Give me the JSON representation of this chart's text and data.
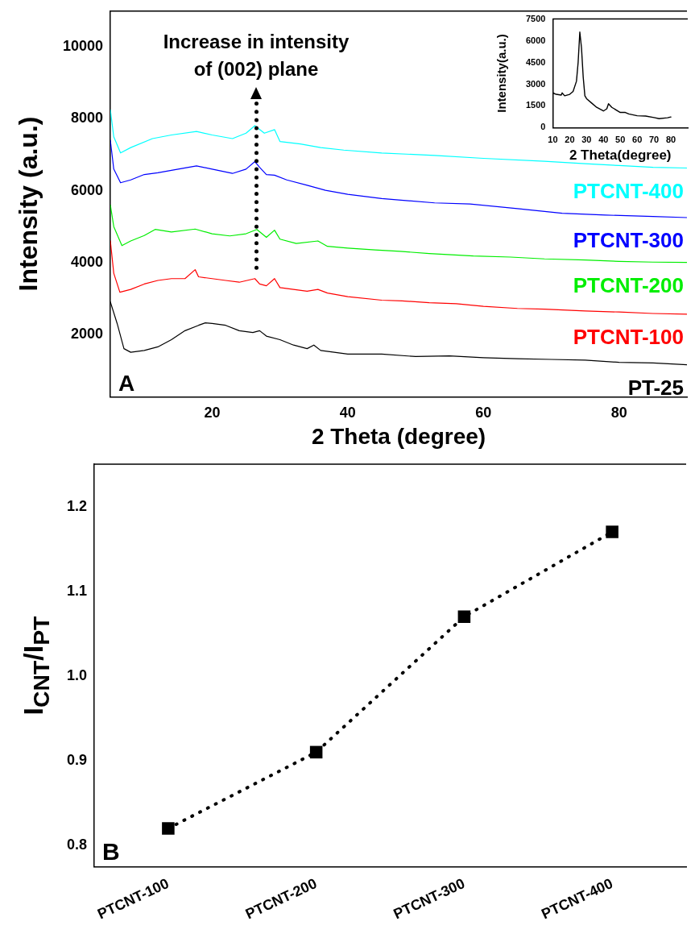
{
  "chart_data": [
    {
      "type": "line",
      "xlabel": "2 Theta (degree)",
      "ylabel": "Intensity (a.u.)",
      "xlim": [
        5,
        90
      ],
      "xticks": [
        20,
        40,
        60,
        80
      ],
      "ylim": [
        250,
        11000
      ],
      "yticks": [
        2000,
        4000,
        6000,
        8000,
        10000
      ],
      "grid": false,
      "legend": false,
      "marker": "none",
      "annotations": [
        "Increase in intensity of (002) plane",
        "A"
      ],
      "series": [
        {
          "name": "PT-25",
          "color": "#000000",
          "x": [
            5,
            6,
            7,
            8,
            10,
            12,
            14,
            16,
            18,
            19,
            20,
            22,
            24,
            26,
            27,
            28,
            30,
            32,
            34,
            35,
            36,
            40,
            45,
            50,
            55,
            60,
            65,
            70,
            75,
            80,
            85,
            90
          ],
          "values": [
            2900,
            2300,
            1600,
            1500,
            1550,
            1650,
            1850,
            2100,
            2250,
            2320,
            2300,
            2250,
            2100,
            2050,
            2100,
            1950,
            1850,
            1700,
            1600,
            1700,
            1550,
            1450,
            1450,
            1380,
            1400,
            1350,
            1320,
            1300,
            1280,
            1220,
            1200,
            1150
          ]
        },
        {
          "name": "PTCNT-100",
          "color": "#ff0000",
          "x": [
            5,
            5.5,
            6.4,
            8,
            10,
            12,
            14,
            16,
            17.5,
            18,
            20,
            22,
            24,
            26.3,
            27,
            28,
            29.2,
            30,
            32,
            34,
            35.6,
            37,
            40,
            45,
            48,
            52,
            56,
            60,
            65,
            69,
            75,
            80,
            85,
            90
          ],
          "values": [
            4600,
            3700,
            3170,
            3250,
            3400,
            3500,
            3550,
            3550,
            3800,
            3600,
            3550,
            3500,
            3450,
            3550,
            3400,
            3350,
            3550,
            3300,
            3250,
            3200,
            3250,
            3150,
            3050,
            2950,
            2930,
            2880,
            2850,
            2780,
            2720,
            2700,
            2650,
            2620,
            2580,
            2560
          ]
        },
        {
          "name": "PTCNT-200",
          "color": "#00ee00",
          "x": [
            5,
            5.5,
            6.7,
            8,
            10,
            11.6,
            14,
            17.5,
            20,
            22.6,
            25,
            26.6,
            28,
            29.2,
            30,
            32.4,
            35.6,
            37,
            40,
            44,
            47.7,
            52,
            58.5,
            64,
            69,
            75,
            80,
            85,
            90
          ],
          "values": [
            5600,
            5000,
            4470,
            4600,
            4750,
            4920,
            4850,
            4930,
            4800,
            4740,
            4800,
            4920,
            4700,
            4900,
            4650,
            4530,
            4600,
            4450,
            4400,
            4350,
            4310,
            4250,
            4180,
            4150,
            4100,
            4070,
            4030,
            4010,
            4000
          ]
        },
        {
          "name": "PTCNT-300",
          "color": "#0000ff",
          "x": [
            5,
            5.5,
            6.5,
            8,
            10,
            12,
            15,
            17.7,
            20,
            23,
            25,
            26.3,
            27,
            28,
            29.2,
            31,
            34,
            36.7,
            40,
            45,
            52.8,
            58,
            65,
            71.6,
            78,
            85,
            90
          ],
          "values": [
            7400,
            6600,
            6220,
            6300,
            6450,
            6500,
            6600,
            6690,
            6600,
            6480,
            6600,
            6810,
            6650,
            6450,
            6430,
            6300,
            6150,
            6010,
            5900,
            5780,
            5660,
            5630,
            5500,
            5370,
            5320,
            5280,
            5250
          ]
        },
        {
          "name": "PTCNT-400",
          "color": "#00ffff",
          "x": [
            5,
            5.5,
            6.5,
            8,
            11.2,
            14,
            17.7,
            20,
            23,
            25,
            26.3,
            27.7,
            29.2,
            30,
            33,
            36,
            39.4,
            45,
            52.8,
            60,
            69,
            75,
            80,
            85,
            90
          ],
          "values": [
            8250,
            7500,
            7050,
            7200,
            7450,
            7550,
            7650,
            7550,
            7450,
            7600,
            7810,
            7600,
            7700,
            7370,
            7300,
            7200,
            7130,
            7050,
            6980,
            6900,
            6820,
            6750,
            6700,
            6650,
            6630
          ]
        }
      ]
    },
    {
      "type": "line",
      "xlabel": "2 Theta(degree)",
      "ylabel": "Intensity(a.u.)",
      "xlim": [
        10,
        90
      ],
      "xticks": [
        10,
        20,
        30,
        40,
        50,
        60,
        70,
        80
      ],
      "ylim": [
        0,
        7500
      ],
      "yticks": [
        0,
        1500,
        3000,
        4500,
        6000,
        7500
      ],
      "grid": false,
      "legend": false,
      "marker": "none",
      "color": "#000000",
      "x": [
        10,
        12,
        15,
        15.5,
        17,
        20,
        22,
        24,
        25,
        26,
        27,
        28,
        29,
        30,
        33,
        36,
        40,
        42,
        43,
        45,
        50,
        53,
        55,
        60,
        65,
        70,
        73,
        78,
        80
      ],
      "values": [
        2400,
        2300,
        2250,
        2400,
        2200,
        2300,
        2500,
        3200,
        4500,
        6600,
        5500,
        3500,
        2200,
        2000,
        1700,
        1400,
        1150,
        1300,
        1650,
        1400,
        1050,
        1050,
        950,
        820,
        800,
        700,
        620,
        680,
        740
      ]
    },
    {
      "type": "line",
      "ylabel": "I$_{CNT}$/I$_{PT}$",
      "categories": [
        "PTCNT-100",
        "PTCNT-200",
        "PTCNT-300",
        "PTCNT-400"
      ],
      "values": [
        0.82,
        0.91,
        1.07,
        1.17
      ],
      "color": "#000000",
      "ylim": [
        0.775,
        1.25
      ],
      "yticks": [
        {
          "value": 0.8,
          "label": "0.8"
        },
        {
          "value": 0.9,
          "label": "0.9"
        },
        {
          "value": 1.0,
          "label": "1.0"
        },
        {
          "value": 1.1,
          "label": "1.1"
        },
        {
          "value": 1.2,
          "label": "1.2"
        }
      ],
      "grid": false,
      "legend": false,
      "marker": "square",
      "line_style": "dotted",
      "annotations": [
        "B"
      ]
    }
  ]
}
